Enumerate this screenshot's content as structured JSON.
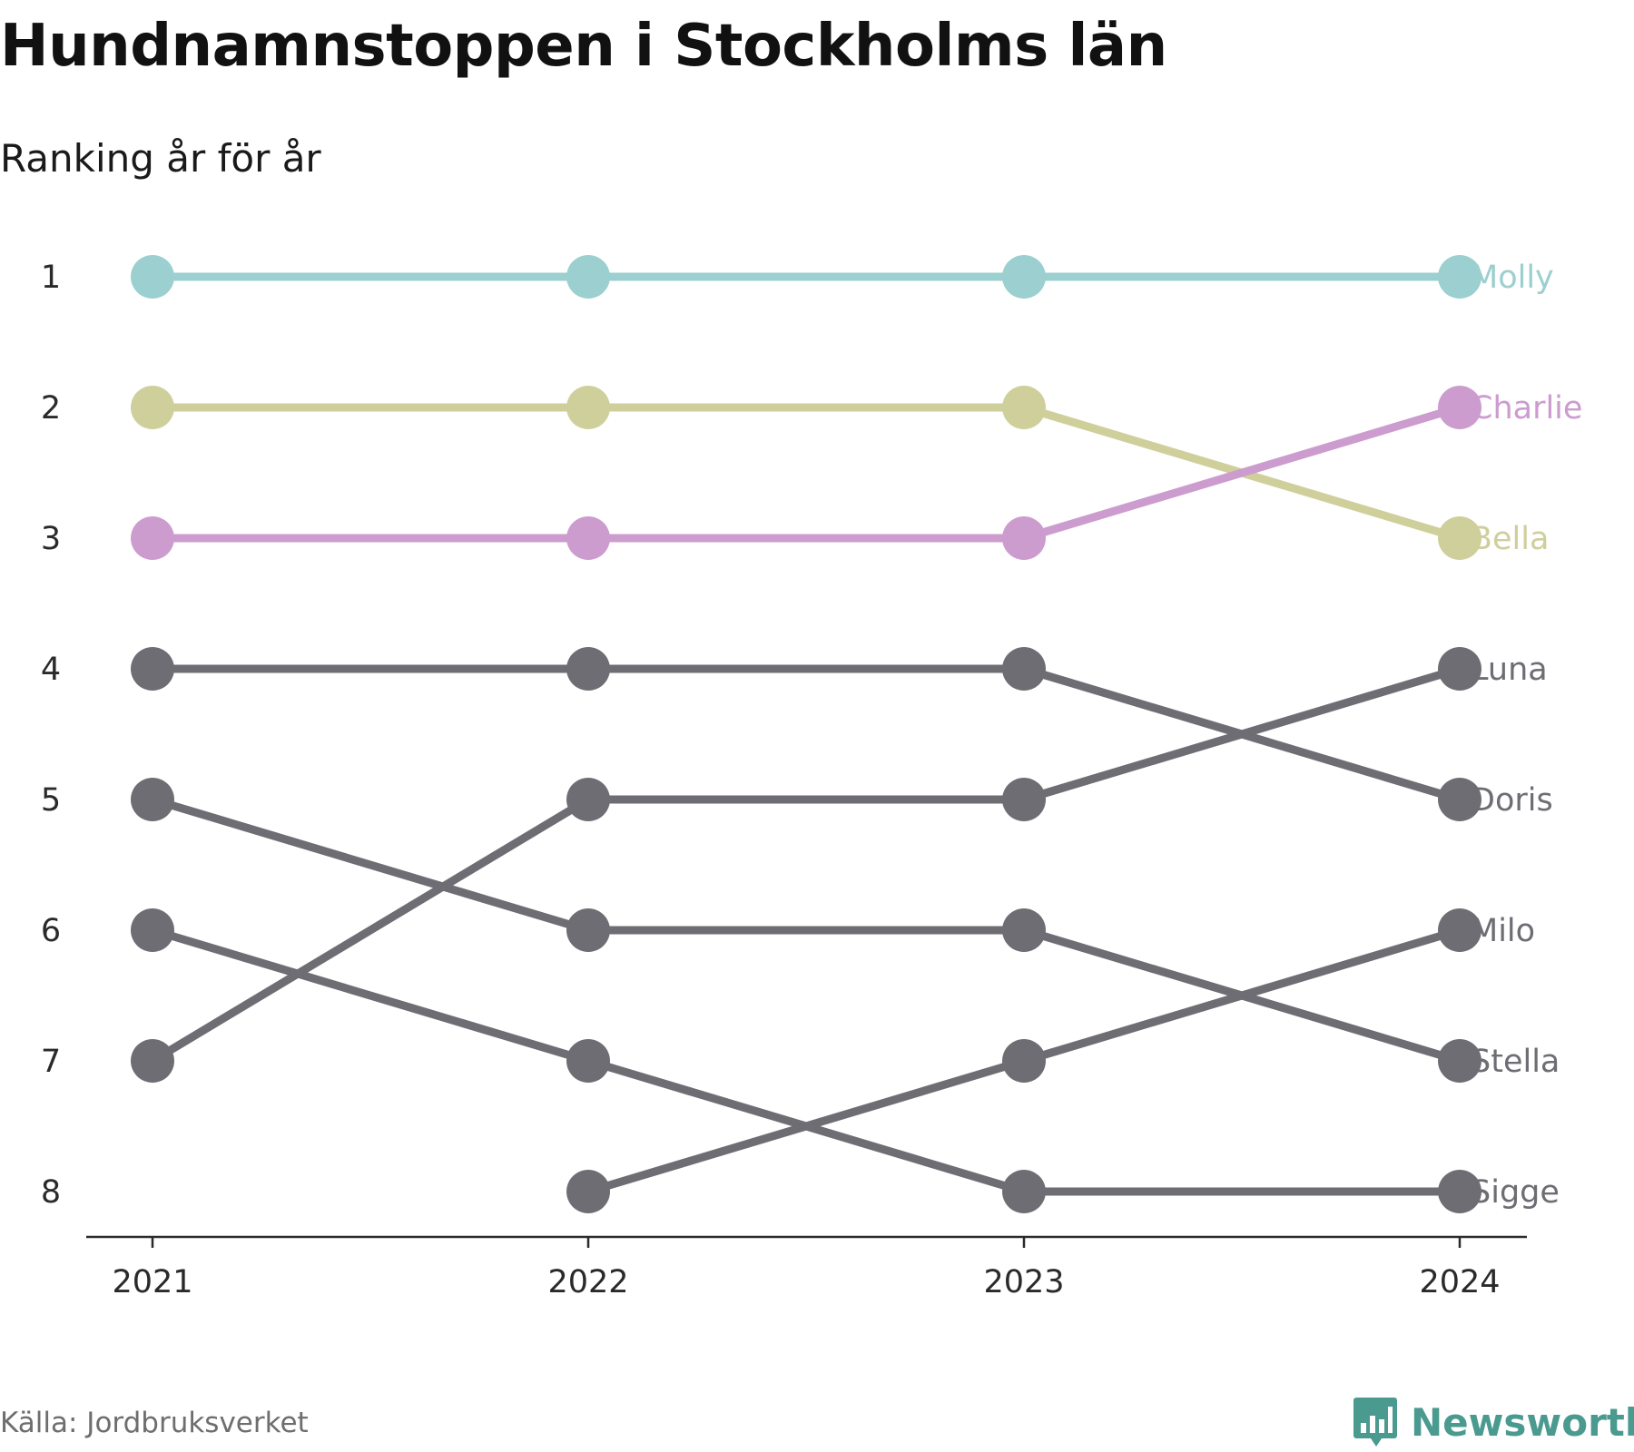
{
  "title": "Hundnamnstoppen i Stockholms län",
  "subtitle": "Ranking år för år",
  "source": "Källa: Jordbruksverket",
  "brand": {
    "name": "Newsworthy",
    "icon": "newsworthy-logo-icon",
    "color": "#4a9a8f"
  },
  "colors": {
    "grey": "#6e6d73",
    "axis": "#2a2a2a"
  },
  "chart_data": {
    "type": "line",
    "subtype": "bump",
    "title": "Hundnamnstoppen i Stockholms län",
    "subtitle": "Ranking år för år",
    "x": [
      "2021",
      "2022",
      "2023",
      "2024"
    ],
    "y_ticks": [
      "1",
      "2",
      "3",
      "4",
      "5",
      "6",
      "7",
      "8"
    ],
    "ylim": [
      1,
      8
    ],
    "y_reversed": true,
    "grid": false,
    "legend": "direct labels at right end",
    "series": [
      {
        "name": "Stella",
        "color": "#6e6d73",
        "values": [
          5,
          6,
          6,
          7
        ]
      },
      {
        "name": "Sigge",
        "color": "#6e6d73",
        "values": [
          6,
          7,
          8,
          8
        ]
      },
      {
        "name": "Milo",
        "color": "#6e6d73",
        "values": [
          null,
          8,
          7,
          6
        ]
      },
      {
        "name": "Luna",
        "color": "#6e6d73",
        "values": [
          7,
          5,
          5,
          4
        ]
      },
      {
        "name": "Doris",
        "color": "#6e6d73",
        "values": [
          4,
          4,
          4,
          5
        ]
      },
      {
        "name": "Bella",
        "color": "#cfcf9c",
        "values": [
          2,
          2,
          2,
          3
        ]
      },
      {
        "name": "Charlie",
        "color": "#cc9ccf",
        "values": [
          3,
          3,
          3,
          2
        ]
      },
      {
        "name": "Molly",
        "color": "#9ccfcf",
        "values": [
          1,
          1,
          1,
          1
        ]
      }
    ]
  }
}
